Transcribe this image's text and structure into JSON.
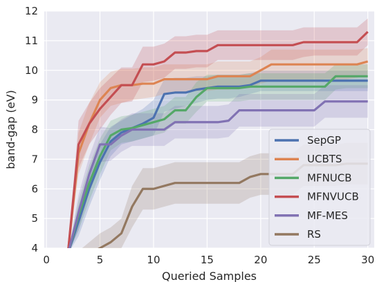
{
  "chart_data": {
    "type": "line",
    "title": "",
    "xlabel": "Queried Samples",
    "ylabel": "band-gap (eV)",
    "xlim": [
      -0.2,
      30.6
    ],
    "ylim": [
      4,
      12
    ],
    "xticks": [
      0,
      5,
      10,
      15,
      20,
      25,
      30
    ],
    "yticks": [
      4,
      5,
      6,
      7,
      8,
      9,
      10,
      11,
      12
    ],
    "xtick_labels": [
      "0",
      "5",
      "10",
      "15",
      "20",
      "25",
      "30"
    ],
    "ytick_labels": [
      "4",
      "5",
      "6",
      "7",
      "8",
      "9",
      "10",
      "11",
      "12"
    ],
    "grid": true,
    "background": "#eaeaf2",
    "legend_position": "lower-right",
    "series": [
      {
        "name": "SepGP",
        "color": "#4c72b0",
        "x": [
          2,
          3,
          4,
          5,
          6,
          7,
          8,
          9,
          10,
          11,
          12,
          13,
          14,
          15,
          16,
          17,
          18,
          19,
          20,
          21,
          22,
          23,
          24,
          25,
          26,
          27,
          28,
          29,
          30
        ],
        "y": [
          3.8,
          4.9,
          6.0,
          6.9,
          7.6,
          7.9,
          8.05,
          8.2,
          8.4,
          9.2,
          9.25,
          9.25,
          9.35,
          9.4,
          9.45,
          9.45,
          9.45,
          9.5,
          9.65,
          9.65,
          9.65,
          9.65,
          9.65,
          9.65,
          9.65,
          9.65,
          9.65,
          9.65,
          9.65
        ],
        "lower": [
          3.8,
          4.4,
          5.4,
          6.3,
          7.1,
          7.5,
          7.6,
          7.7,
          7.8,
          8.6,
          8.7,
          8.8,
          8.9,
          9.0,
          9.05,
          9.05,
          9.1,
          9.2,
          9.3,
          9.3,
          9.3,
          9.3,
          9.3,
          9.3,
          9.3,
          9.3,
          9.3,
          9.3,
          9.3
        ],
        "upper": [
          3.8,
          5.4,
          6.6,
          7.5,
          8.1,
          8.3,
          8.5,
          8.7,
          9.0,
          9.7,
          9.75,
          9.75,
          9.8,
          9.8,
          9.85,
          9.85,
          9.85,
          9.9,
          10.0,
          10.0,
          10.0,
          10.0,
          10.0,
          10.0,
          10.0,
          10.0,
          10.0,
          10.0,
          10.0
        ]
      },
      {
        "name": "UCBTS",
        "color": "#dd8452",
        "x": [
          2,
          3,
          4,
          5,
          6,
          7,
          8,
          9,
          10,
          11,
          12,
          13,
          14,
          15,
          16,
          17,
          18,
          19,
          20,
          21,
          22,
          23,
          24,
          25,
          26,
          27,
          28,
          29,
          30
        ],
        "y": [
          3.8,
          7.2,
          8.2,
          9.0,
          9.4,
          9.5,
          9.5,
          9.55,
          9.55,
          9.7,
          9.7,
          9.7,
          9.7,
          9.7,
          9.8,
          9.8,
          9.8,
          9.8,
          10.0,
          10.2,
          10.2,
          10.2,
          10.2,
          10.2,
          10.2,
          10.2,
          10.2,
          10.2,
          10.3
        ],
        "lower": [
          3.8,
          6.5,
          7.5,
          8.4,
          8.8,
          8.9,
          9.0,
          9.05,
          9.1,
          9.2,
          9.25,
          9.25,
          9.3,
          9.3,
          9.35,
          9.35,
          9.4,
          9.4,
          9.55,
          9.65,
          9.65,
          9.65,
          9.65,
          9.65,
          9.7,
          9.7,
          9.7,
          9.75,
          9.85
        ],
        "upper": [
          3.8,
          7.9,
          8.9,
          9.6,
          9.95,
          10.05,
          10.05,
          10.1,
          10.1,
          10.2,
          10.2,
          10.2,
          10.2,
          10.2,
          10.3,
          10.3,
          10.3,
          10.3,
          10.45,
          10.7,
          10.7,
          10.7,
          10.7,
          10.7,
          10.7,
          10.7,
          10.7,
          10.7,
          10.75
        ]
      },
      {
        "name": "MFNUCB",
        "color": "#55a868",
        "x": [
          2,
          3,
          4,
          5,
          6,
          7,
          8,
          9,
          10,
          11,
          12,
          13,
          14,
          15,
          16,
          17,
          18,
          19,
          20,
          21,
          22,
          23,
          24,
          25,
          26,
          27,
          28,
          29,
          30
        ],
        "y": [
          3.8,
          5.1,
          6.2,
          7.1,
          7.8,
          8.0,
          8.05,
          8.15,
          8.25,
          8.35,
          8.65,
          8.65,
          9.1,
          9.4,
          9.4,
          9.4,
          9.4,
          9.45,
          9.45,
          9.45,
          9.45,
          9.45,
          9.45,
          9.45,
          9.45,
          9.8,
          9.8,
          9.8,
          9.8
        ],
        "lower": [
          3.8,
          4.6,
          5.6,
          6.5,
          7.3,
          7.55,
          7.6,
          7.7,
          7.8,
          7.9,
          8.2,
          8.2,
          8.6,
          8.95,
          8.95,
          8.95,
          8.95,
          9.0,
          9.0,
          9.0,
          9.0,
          9.0,
          9.0,
          9.0,
          9.0,
          9.35,
          9.4,
          9.4,
          9.4
        ],
        "upper": [
          3.8,
          5.6,
          6.8,
          7.7,
          8.3,
          8.45,
          8.5,
          8.6,
          8.7,
          8.8,
          9.1,
          9.1,
          9.6,
          9.85,
          9.85,
          9.85,
          9.85,
          9.9,
          9.9,
          9.9,
          9.9,
          9.9,
          9.9,
          9.9,
          9.9,
          10.2,
          10.2,
          10.2,
          10.2
        ]
      },
      {
        "name": "MFNVUCB",
        "color": "#c44e52",
        "x": [
          2,
          3,
          4,
          5,
          6,
          7,
          8,
          9,
          10,
          11,
          12,
          13,
          14,
          15,
          16,
          17,
          18,
          19,
          20,
          21,
          22,
          23,
          24,
          25,
          26,
          27,
          28,
          29,
          30
        ],
        "y": [
          3.8,
          7.5,
          8.2,
          8.7,
          9.1,
          9.5,
          9.5,
          10.2,
          10.2,
          10.3,
          10.6,
          10.6,
          10.65,
          10.65,
          10.85,
          10.85,
          10.85,
          10.85,
          10.85,
          10.85,
          10.85,
          10.85,
          10.95,
          10.95,
          10.95,
          10.95,
          10.95,
          10.95,
          11.3
        ],
        "lower": [
          3.8,
          6.7,
          7.5,
          8.0,
          8.5,
          8.9,
          8.95,
          9.6,
          9.65,
          9.75,
          10.05,
          10.05,
          10.1,
          10.1,
          10.35,
          10.35,
          10.35,
          10.35,
          10.35,
          10.35,
          10.35,
          10.35,
          10.45,
          10.5,
          10.5,
          10.5,
          10.5,
          10.5,
          10.85
        ],
        "upper": [
          3.8,
          8.3,
          8.9,
          9.4,
          9.75,
          10.1,
          10.1,
          10.8,
          10.8,
          10.9,
          11.15,
          11.15,
          11.2,
          11.2,
          11.35,
          11.35,
          11.35,
          11.35,
          11.35,
          11.35,
          11.35,
          11.35,
          11.45,
          11.45,
          11.45,
          11.45,
          11.45,
          11.45,
          11.75
        ]
      },
      {
        "name": "MF-MES",
        "color": "#8172b3",
        "x": [
          2,
          3,
          4,
          5,
          6,
          7,
          8,
          9,
          10,
          11,
          12,
          13,
          14,
          15,
          16,
          17,
          18,
          19,
          20,
          21,
          22,
          23,
          24,
          25,
          26,
          27,
          28,
          29,
          30
        ],
        "y": [
          3.8,
          5.2,
          6.5,
          7.5,
          7.5,
          7.8,
          8.0,
          8.0,
          8.0,
          8.0,
          8.25,
          8.25,
          8.25,
          8.25,
          8.25,
          8.3,
          8.65,
          8.65,
          8.65,
          8.65,
          8.65,
          8.65,
          8.65,
          8.65,
          8.95,
          8.95,
          8.95,
          8.95,
          8.95
        ],
        "lower": [
          3.8,
          4.6,
          5.9,
          6.9,
          6.95,
          7.25,
          7.45,
          7.45,
          7.45,
          7.45,
          7.7,
          7.7,
          7.7,
          7.7,
          7.7,
          7.75,
          8.1,
          8.1,
          8.1,
          8.1,
          8.1,
          8.1,
          8.1,
          8.1,
          8.4,
          8.4,
          8.4,
          8.4,
          8.4
        ],
        "upper": [
          3.8,
          5.8,
          7.1,
          8.1,
          8.05,
          8.35,
          8.55,
          8.55,
          8.55,
          8.55,
          8.8,
          8.8,
          8.8,
          8.8,
          8.8,
          8.85,
          9.2,
          9.2,
          9.2,
          9.2,
          9.2,
          9.2,
          9.2,
          9.2,
          9.5,
          9.5,
          9.5,
          9.5,
          9.5
        ]
      },
      {
        "name": "RS",
        "color": "#937860",
        "x": [
          2,
          3,
          4,
          5,
          6,
          7,
          8,
          9,
          10,
          11,
          12,
          13,
          14,
          15,
          16,
          17,
          18,
          19,
          20,
          21,
          22,
          23,
          24,
          25,
          26,
          27,
          28,
          29,
          30
        ],
        "y": [
          3.0,
          3.5,
          3.8,
          4.0,
          4.2,
          4.5,
          5.4,
          6.0,
          6.0,
          6.1,
          6.2,
          6.2,
          6.2,
          6.2,
          6.2,
          6.2,
          6.2,
          6.4,
          6.5,
          6.5,
          6.5,
          6.5,
          6.8,
          6.8,
          6.8,
          6.8,
          6.85,
          6.85,
          6.85
        ],
        "lower": [
          2.7,
          3.1,
          3.4,
          3.5,
          3.7,
          4.0,
          4.7,
          5.3,
          5.3,
          5.4,
          5.5,
          5.5,
          5.5,
          5.5,
          5.5,
          5.5,
          5.5,
          5.7,
          5.8,
          5.8,
          5.8,
          5.8,
          6.1,
          6.1,
          6.1,
          6.1,
          6.15,
          6.15,
          6.15
        ],
        "upper": [
          3.3,
          3.9,
          4.2,
          4.5,
          4.7,
          5.0,
          6.1,
          6.7,
          6.7,
          6.8,
          6.9,
          6.9,
          6.9,
          6.9,
          6.9,
          6.9,
          6.9,
          7.1,
          7.2,
          7.2,
          7.2,
          7.2,
          7.5,
          7.5,
          7.5,
          7.5,
          7.55,
          7.55,
          7.55
        ]
      }
    ]
  }
}
